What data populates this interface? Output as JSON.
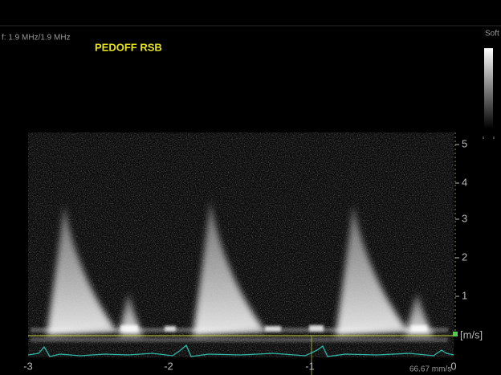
{
  "header": {
    "frequency": "f: 1.9 MHz/1.9 MHz",
    "label": "PEDOFF RSB",
    "preset": "Soft"
  },
  "velocity_axis": {
    "ticks": [
      "5",
      "4",
      "3",
      "2",
      "1"
    ],
    "unit": "[m/s]"
  },
  "time_axis": {
    "ticks": [
      "-3",
      "-2",
      "-1",
      "0"
    ]
  },
  "sweep_speed": "66.67 mm/s"
}
